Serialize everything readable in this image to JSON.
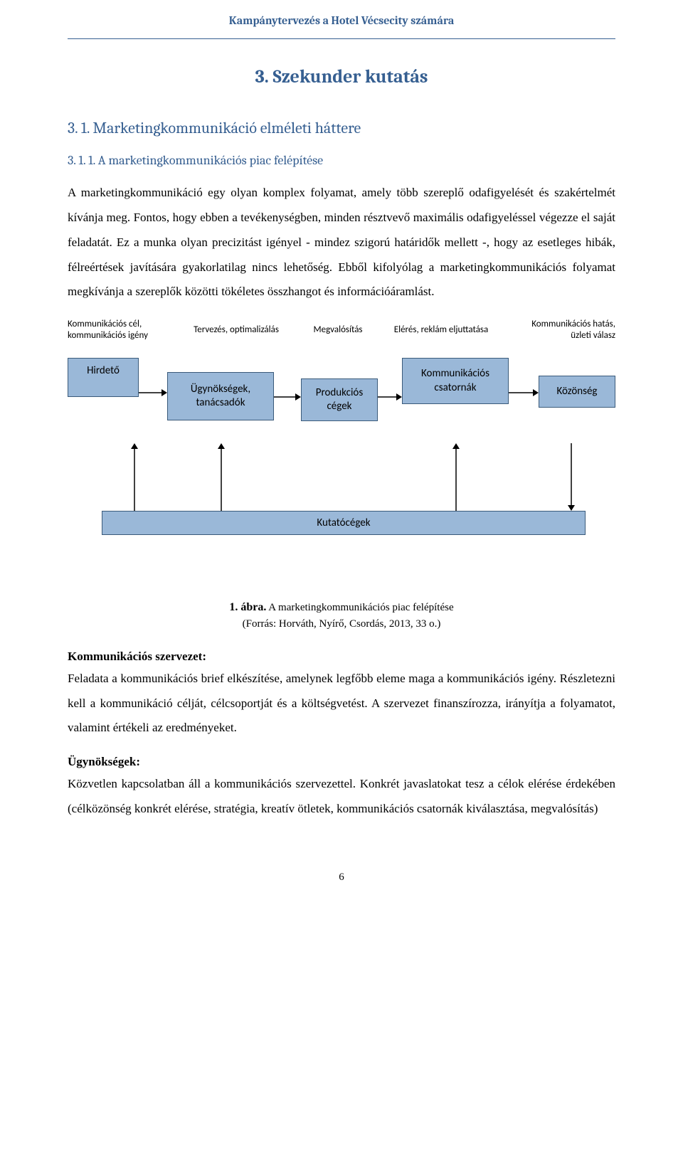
{
  "header": {
    "running_title": "Kampánytervezés a Hotel Vécsecity számára"
  },
  "headings": {
    "h1": "3. Szekunder kutatás",
    "h2": "3. 1. Marketingkommunikáció elméleti háttere",
    "h3": "3. 1. 1. A marketingkommunikációs piac felépítése"
  },
  "paragraphs": {
    "p1": "A marketingkommunikáció egy olyan komplex folyamat, amely több szereplő odafigyelését és szakértelmét kívánja meg. Fontos, hogy ebben a tevékenységben, minden résztvevő maximális odafigyeléssel végezze el saját feladatát. Ez a munka olyan precizitást igényel - mindez szigorú határidők mellett -, hogy az esetleges hibák, félreértések javítására gyakorlatilag nincs lehetőség. Ebből kifolyólag a marketingkommunikációs folyamat megkívánja a szereplők közötti tökéletes összhangot és információáramlást.",
    "p2": "Feladata a kommunikációs brief elkészítése, amelynek legfőbb eleme maga a kommunikációs igény. Részletezni kell a kommunikáció célját, célcsoportját és a költségvetést. A szervezet finanszírozza, irányítja a folyamatot, valamint értékeli az eredményeket.",
    "p3": "Közvetlen kapcsolatban áll a kommunikációs szervezettel. Konkrét javaslatokat tesz a célok elérése érdekében (célközönség konkrét elérése, stratégia, kreatív ötletek, kommunikációs csatornák kiválasztása, megvalósítás)"
  },
  "section_labels": {
    "komm_szervezet": "Kommunikációs szervezet:",
    "ugynoksegek": "Ügynökségek:"
  },
  "caption": {
    "bold": "1. ábra.",
    "rest": " A marketingkommunikációs piac felépítése",
    "source": "(Forrás: Horváth, Nyírő, Csordás, 2013, 33 o.)"
  },
  "diagram": {
    "top_labels": {
      "l1": "Kommunikációs cél,\nkommunikációs igény",
      "l2": "Tervezés, optimalizálás",
      "l3": "Megvalósítás",
      "l4": "Elérés, reklám eljuttatása",
      "l5": "Kommunikációs hatás,\nüzleti válasz"
    },
    "boxes": {
      "b1": "Hirdető",
      "b2": "Ügynökségek,\ntanácsadók",
      "b3": "Produkciós\ncégek",
      "b4": "Kommunikációs\ncsatornák",
      "b5": "Közönség"
    },
    "bottom_box": "Kutatócégek",
    "colors": {
      "box_fill": "#9ab8d8",
      "box_border": "#3a5a7a",
      "arrow": "#000000",
      "label_text": "#000000"
    }
  },
  "page_number": "6"
}
